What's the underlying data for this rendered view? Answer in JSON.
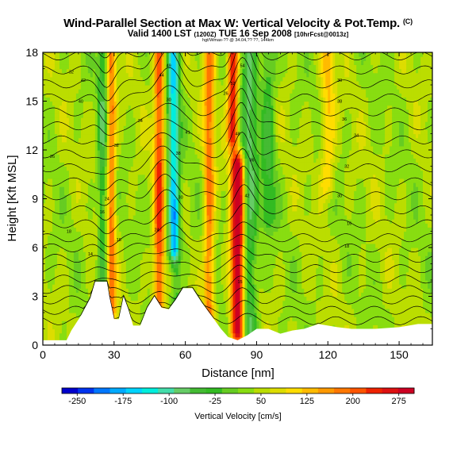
{
  "header": {
    "title": "Wind-Parallel Section at Max W: Vertical Velocity & Pot.Temp.",
    "title_units": "(C)",
    "valid_prefix": "Valid 1400 LST",
    "valid_utc": "(1200Z)",
    "valid_date": "TUE 16 Sep 2008",
    "forecast": "[10hrFcst@0013z]",
    "fine_print": "hgt/Wmax-?? @ 34.04,?? ??, 144km"
  },
  "chart_data": {
    "type": "heatmap",
    "title": "Wind-Parallel Section at Max W: Vertical Velocity & Pot.Temp. (C)",
    "xlabel": "Distance [nm]",
    "ylabel": "Height [Kft MSL]",
    "xlim": [
      0,
      164
    ],
    "ylim": [
      0,
      18
    ],
    "xticks": [
      0,
      30,
      60,
      90,
      120,
      150
    ],
    "yticks": [
      0,
      3,
      6,
      9,
      12,
      15,
      18
    ],
    "colorbar": {
      "label": "Vertical Velocity [cm/s]",
      "ticks": [
        -250,
        -175,
        -100,
        -25,
        50,
        125,
        200,
        275
      ],
      "range": [
        -275,
        300
      ],
      "colors": [
        "#0000cc",
        "#0033ee",
        "#0077ff",
        "#00aaff",
        "#00d4ff",
        "#00eedd",
        "#44ddaa",
        "#66cc66",
        "#44bb33",
        "#33bb22",
        "#66cc22",
        "#88dd11",
        "#bbdd00",
        "#dddd00",
        "#ffdd00",
        "#ffbb00",
        "#ff9900",
        "#ff7700",
        "#ff5500",
        "#ee2200",
        "#dd1111",
        "#cc0022"
      ]
    },
    "base_field_cm_s": 40,
    "features": [
      {
        "x": 25,
        "y_min": 3.9,
        "y_max": 18,
        "width_nm": 1.8,
        "peak_cm_s": -90
      },
      {
        "x": 29,
        "y_min": 1,
        "y_max": 18,
        "width_nm": 1.8,
        "peak_cm_s": 140
      },
      {
        "x": 49,
        "y_min": 2.2,
        "y_max": 18,
        "width_nm": 2.2,
        "peak_cm_s": 180
      },
      {
        "x": 55,
        "y_min": 6,
        "y_max": 18,
        "width_nm": 2.5,
        "peak_cm_s": -180
      },
      {
        "x": 56,
        "y_min": 2.5,
        "y_max": 8,
        "width_nm": 2.0,
        "peak_cm_s": -70
      },
      {
        "x": 70,
        "y_min": 1.5,
        "y_max": 18,
        "width_nm": 2.2,
        "peak_cm_s": 140
      },
      {
        "x": 80,
        "y_min": 13,
        "y_max": 18,
        "width_nm": 2.2,
        "peak_cm_s": 220
      },
      {
        "x": 82,
        "y_min": 1,
        "y_max": 11,
        "width_nm": 2.8,
        "peak_cm_s": 280
      },
      {
        "x": 87,
        "y_min": 1,
        "y_max": 18,
        "width_nm": 3.2,
        "peak_cm_s": -110
      },
      {
        "x": 95,
        "y_min": 8,
        "y_max": 18,
        "width_nm": 3.0,
        "peak_cm_s": -80
      },
      {
        "x": 120,
        "y_min": 10,
        "y_max": 18,
        "width_nm": 3.0,
        "peak_cm_s": 80
      }
    ],
    "terrain_kft": [
      [
        0,
        0.3
      ],
      [
        10,
        0.3
      ],
      [
        12,
        0.9
      ],
      [
        16,
        1.8
      ],
      [
        20,
        2.9
      ],
      [
        22,
        3.9
      ],
      [
        27,
        3.9
      ],
      [
        28,
        3.0
      ],
      [
        30,
        1.6
      ],
      [
        32,
        1.6
      ],
      [
        34,
        3.0
      ],
      [
        36,
        2.2
      ],
      [
        38,
        1.2
      ],
      [
        41,
        1.2
      ],
      [
        44,
        2.3
      ],
      [
        47,
        3.0
      ],
      [
        50,
        2.3
      ],
      [
        53,
        2.2
      ],
      [
        56,
        2.8
      ],
      [
        59,
        3.5
      ],
      [
        63,
        3.5
      ],
      [
        67,
        2.6
      ],
      [
        71,
        1.8
      ],
      [
        75,
        1.0
      ],
      [
        78,
        0.5
      ],
      [
        82,
        0.3
      ],
      [
        86,
        0.6
      ],
      [
        90,
        1.0
      ],
      [
        95,
        1.0
      ],
      [
        100,
        0.7
      ],
      [
        105,
        0.9
      ],
      [
        110,
        1.0
      ],
      [
        116,
        1.3
      ],
      [
        124,
        1.1
      ],
      [
        130,
        1.0
      ],
      [
        140,
        1.0
      ],
      [
        150,
        1.1
      ],
      [
        158,
        1.3
      ],
      [
        164,
        1.3
      ]
    ],
    "isentropes_C": [
      8,
      10,
      12,
      14,
      16,
      18,
      20,
      22,
      24,
      26,
      28,
      30,
      32,
      34,
      36,
      38,
      40,
      42,
      44,
      46,
      48,
      50,
      52,
      54
    ],
    "isentrope_labels": [
      {
        "x": 4,
        "y": 11.6,
        "text": "26"
      },
      {
        "x": 11,
        "y": 7.0,
        "text": "18"
      },
      {
        "x": 12,
        "y": 16.8,
        "text": "32"
      },
      {
        "x": 16,
        "y": 15.0,
        "text": "40"
      },
      {
        "x": 17,
        "y": 16.3,
        "text": "42"
      },
      {
        "x": 20,
        "y": 5.6,
        "text": "14"
      },
      {
        "x": 25,
        "y": 8.2,
        "text": "16"
      },
      {
        "x": 27,
        "y": 9.0,
        "text": "24"
      },
      {
        "x": 31,
        "y": 12.3,
        "text": "32"
      },
      {
        "x": 32,
        "y": 6.5,
        "text": "18"
      },
      {
        "x": 41,
        "y": 13.8,
        "text": "34"
      },
      {
        "x": 48,
        "y": 7.1,
        "text": "24"
      },
      {
        "x": 50,
        "y": 16.6,
        "text": "44"
      },
      {
        "x": 53,
        "y": 17.2,
        "text": "49"
      },
      {
        "x": 53,
        "y": 15.1,
        "text": "30"
      },
      {
        "x": 57,
        "y": 11.8,
        "text": "38"
      },
      {
        "x": 58,
        "y": 9.1,
        "text": "30"
      },
      {
        "x": 61,
        "y": 13.1,
        "text": "41"
      },
      {
        "x": 77,
        "y": 15.5,
        "text": "26"
      },
      {
        "x": 80,
        "y": 16.1,
        "text": "52"
      },
      {
        "x": 82,
        "y": 13.0,
        "text": "48"
      },
      {
        "x": 83,
        "y": 3.9,
        "text": "15"
      },
      {
        "x": 84,
        "y": 17.2,
        "text": "54"
      },
      {
        "x": 86,
        "y": 9.2,
        "text": "42"
      },
      {
        "x": 88,
        "y": 11.4,
        "text": "36"
      },
      {
        "x": 125,
        "y": 16.3,
        "text": "30"
      },
      {
        "x": 125,
        "y": 15.0,
        "text": "38"
      },
      {
        "x": 125,
        "y": 9.2,
        "text": "30"
      },
      {
        "x": 127,
        "y": 13.9,
        "text": "36"
      },
      {
        "x": 128,
        "y": 11.0,
        "text": "32"
      },
      {
        "x": 128,
        "y": 6.1,
        "text": "18"
      },
      {
        "x": 129,
        "y": 7.5,
        "text": "16"
      },
      {
        "x": 132,
        "y": 12.9,
        "text": "34"
      }
    ]
  }
}
